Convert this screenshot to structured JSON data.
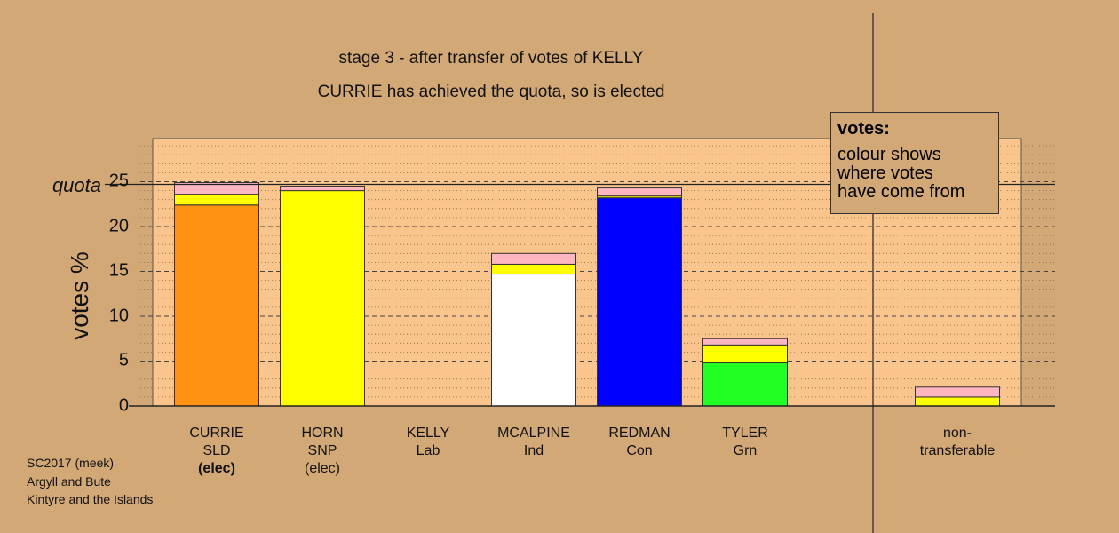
{
  "chart_data": {
    "type": "bar",
    "stacked": true,
    "title": "stage 3 - after transfer of votes of KELLY",
    "subtitle": "CURRIE has achieved the quota, so is elected",
    "ylabel": "votes %",
    "ylim": [
      0,
      28
    ],
    "yticks": [
      "0",
      "5",
      "10",
      "15",
      "20",
      "25"
    ],
    "quota_label": "quota",
    "quota_value": 24.7,
    "grid": true,
    "candidates": [
      {
        "name": "CURRIE",
        "party": "SLD",
        "status": "(elec)",
        "status_bold": true,
        "segments": [
          {
            "color": "#ff9210",
            "value": 22.4
          },
          {
            "color": "#ffff00",
            "value": 1.2
          },
          {
            "color": "#ffb6c1",
            "value": 1.3
          }
        ]
      },
      {
        "name": "HORN",
        "party": "SNP",
        "status": "(elec)",
        "status_bold": false,
        "segments": [
          {
            "color": "#ffff00",
            "value": 24.0
          },
          {
            "color": "#ffb6c1",
            "value": 0.5
          }
        ]
      },
      {
        "name": "KELLY",
        "party": "Lab",
        "status": "",
        "status_bold": false,
        "segments": []
      },
      {
        "name": "MCALPINE",
        "party": "Ind",
        "status": "",
        "status_bold": false,
        "segments": [
          {
            "color": "#ffffff",
            "value": 14.7
          },
          {
            "color": "#ffff00",
            "value": 1.1
          },
          {
            "color": "#ffb6c1",
            "value": 1.2
          }
        ]
      },
      {
        "name": "REDMAN",
        "party": "Con",
        "status": "",
        "status_bold": false,
        "segments": [
          {
            "color": "#0000ff",
            "value": 23.2
          },
          {
            "color": "#ffff00",
            "value": 0.2
          },
          {
            "color": "#ffb6c1",
            "value": 0.9
          }
        ]
      },
      {
        "name": "TYLER",
        "party": "Grn",
        "status": "",
        "status_bold": false,
        "segments": [
          {
            "color": "#22ff22",
            "value": 4.8
          },
          {
            "color": "#ffff00",
            "value": 2.0
          },
          {
            "color": "#ffb6c1",
            "value": 0.7
          }
        ]
      }
    ],
    "non_transferable": {
      "label_line1": "non-",
      "label_line2": "transferable",
      "segments": [
        {
          "color": "#ffff00",
          "value": 1.0
        },
        {
          "color": "#ffb6c1",
          "value": 1.1
        }
      ]
    },
    "legend": {
      "title": "votes:",
      "lines": [
        "colour shows",
        "where votes",
        "have come from"
      ]
    }
  },
  "footer": [
    "SC2017 (meek)",
    "Argyll and Bute",
    "Kintyre and the Islands"
  ]
}
